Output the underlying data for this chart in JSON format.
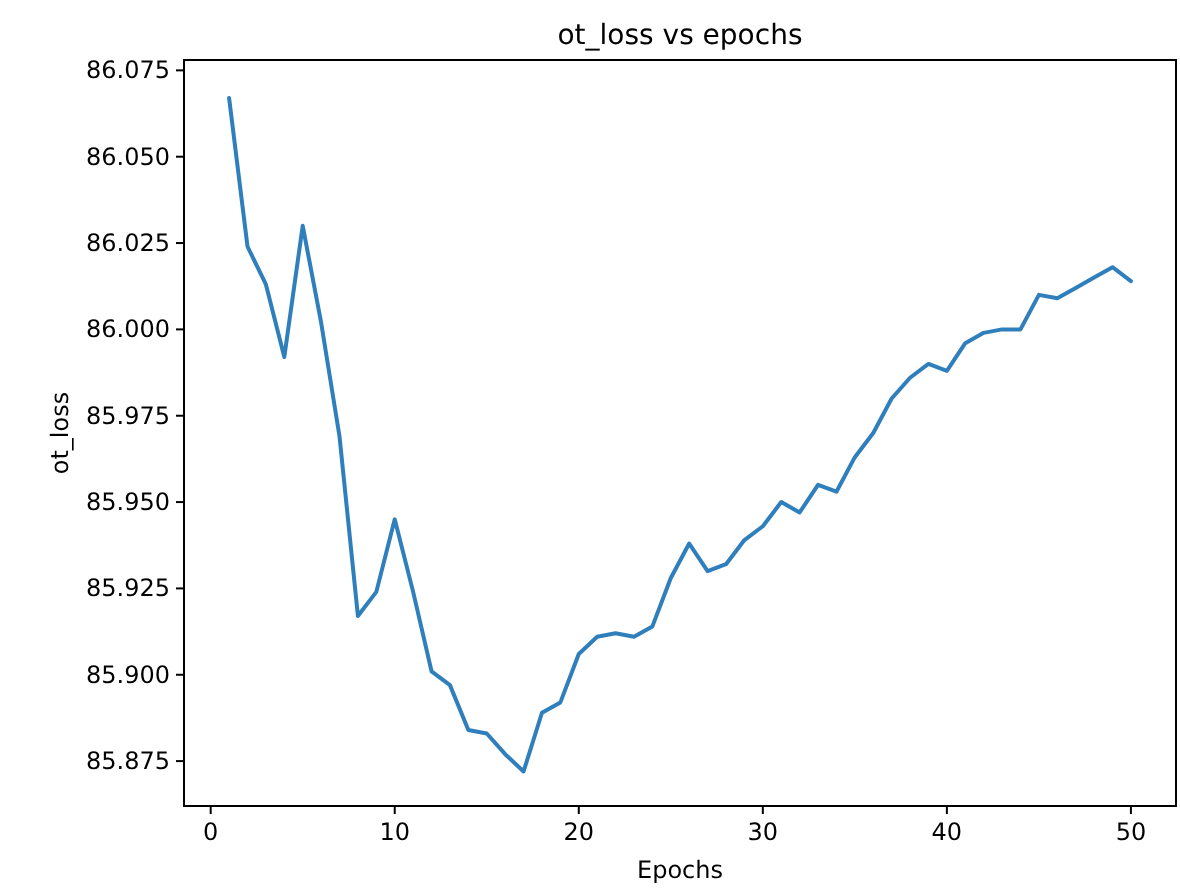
{
  "chart_data": {
    "type": "line",
    "title": "ot_loss vs epochs",
    "xlabel": "Epochs",
    "ylabel": "ot_loss",
    "x": [
      1,
      2,
      3,
      4,
      5,
      6,
      7,
      8,
      9,
      10,
      11,
      12,
      13,
      14,
      15,
      16,
      17,
      18,
      19,
      20,
      21,
      22,
      23,
      24,
      25,
      26,
      27,
      28,
      29,
      30,
      31,
      32,
      33,
      34,
      35,
      36,
      37,
      38,
      39,
      40,
      41,
      42,
      43,
      44,
      45,
      46,
      47,
      48,
      49,
      50
    ],
    "series": [
      {
        "color": "#2f7fbd",
        "values": [
          86.067,
          86.024,
          86.013,
          85.992,
          86.03,
          86.002,
          85.969,
          85.917,
          85.924,
          85.945,
          85.924,
          85.901,
          85.897,
          85.884,
          85.883,
          85.877,
          85.872,
          85.889,
          85.892,
          85.906,
          85.911,
          85.912,
          85.911,
          85.914,
          85.928,
          85.938,
          85.93,
          85.932,
          85.939,
          85.943,
          85.95,
          85.947,
          85.955,
          85.953,
          85.963,
          85.97,
          85.98,
          85.986,
          85.99,
          85.988,
          85.996,
          85.999,
          86.0,
          86.0,
          86.01,
          86.009,
          86.012,
          86.015,
          86.018,
          86.014
        ]
      }
    ],
    "xlim": [
      -1.45,
      52.45
    ],
    "xticks": [
      0,
      10,
      20,
      30,
      40,
      50
    ],
    "ylim": [
      85.862,
      86.078
    ],
    "yticks": [
      {
        "value": 85.875,
        "label": "85.875"
      },
      {
        "value": 85.9,
        "label": "85.900"
      },
      {
        "value": 85.925,
        "label": "85.925"
      },
      {
        "value": 85.95,
        "label": "85.950"
      },
      {
        "value": 85.975,
        "label": "85.975"
      },
      {
        "value": 86.0,
        "label": "86.000"
      },
      {
        "value": 86.025,
        "label": "86.025"
      },
      {
        "value": 86.05,
        "label": "86.050"
      },
      {
        "value": 86.075,
        "label": "86.075"
      }
    ],
    "grid": false,
    "marker": "none",
    "line_style": "solid"
  }
}
